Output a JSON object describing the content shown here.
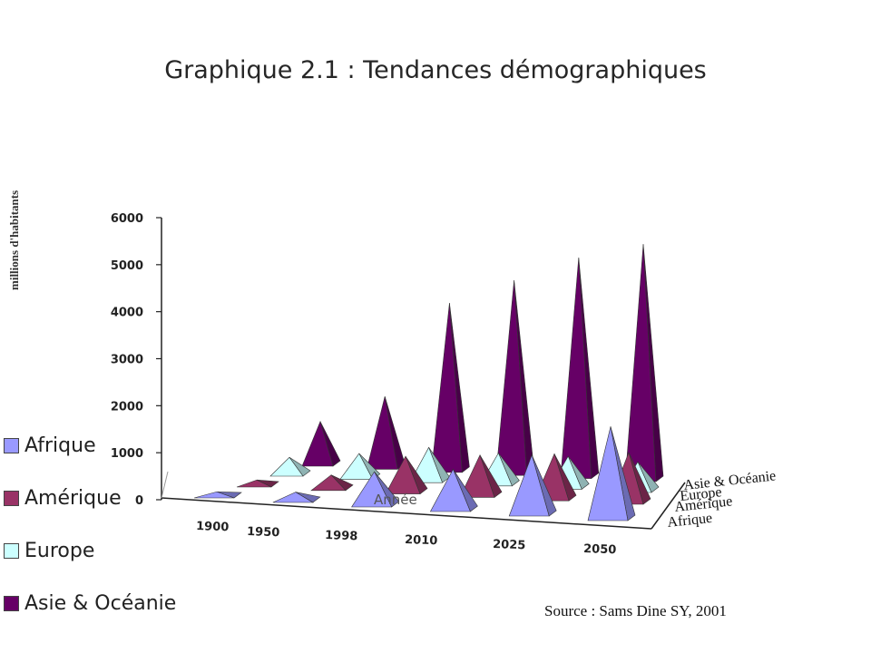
{
  "title": "Graphique 2.1 : Tendances démographiques",
  "source": "Source : Sams Dine SY, 2001",
  "chart_data": {
    "type": "bar",
    "style": "3d-pyramid",
    "title": "Graphique 2.1 : Tendances démographiques",
    "ylabel": "millions d'habitants",
    "xlabel": "Année",
    "ylim": [
      0,
      6000
    ],
    "yticks": [
      0,
      1000,
      2000,
      3000,
      4000,
      5000,
      6000
    ],
    "categories": [
      "1900",
      "1950",
      "1998",
      "2010",
      "2025",
      "2050"
    ],
    "depth_labels": [
      "Afrique",
      "Amérique",
      "Europe",
      "Asie & Océanie"
    ],
    "legend_position": "left",
    "grid": false,
    "series": [
      {
        "name": "Afrique",
        "color": "#9999ff",
        "values": [
          130,
          220,
          750,
          900,
          1300,
          2000
        ]
      },
      {
        "name": "Amérique",
        "color": "#993366",
        "values": [
          150,
          330,
          800,
          900,
          1000,
          1100
        ]
      },
      {
        "name": "Europe",
        "color": "#ccffff",
        "values": [
          400,
          550,
          750,
          700,
          700,
          650
        ]
      },
      {
        "name": "Asie & Océanie",
        "color": "#660066",
        "values": [
          950,
          1550,
          3600,
          4150,
          4700,
          5050
        ]
      }
    ]
  }
}
